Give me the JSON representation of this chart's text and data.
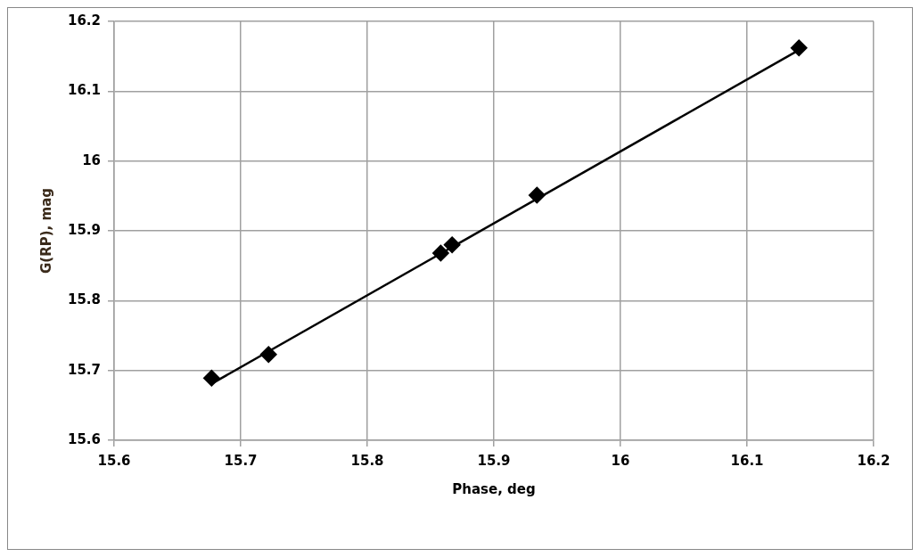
{
  "chart_data": {
    "type": "scatter",
    "xlabel": "Phase, deg",
    "ylabel": "G(RP), mag",
    "xlim": [
      15.6,
      16.2
    ],
    "xticks": [
      15.6,
      15.7,
      15.8,
      15.9,
      16,
      16.1,
      16.2
    ],
    "ylim": [
      15.6,
      16.2
    ],
    "yticks": [
      15.6,
      15.7,
      15.8,
      15.9,
      16,
      16.1,
      16.2
    ],
    "grid": true,
    "legend": false,
    "marker": "diamond",
    "series": [
      {
        "color": "#000000",
        "x": [
          15.677,
          15.722,
          15.858,
          15.867,
          15.934,
          16.141
        ],
        "values": [
          15.689,
          15.723,
          15.868,
          15.88,
          15.951,
          16.162
        ]
      },
      {
        "type": "line",
        "color": "#000000",
        "marker": "none",
        "line_style": "solid",
        "x": [
          15.677,
          16.141
        ],
        "values": [
          15.681,
          16.159
        ]
      }
    ]
  }
}
